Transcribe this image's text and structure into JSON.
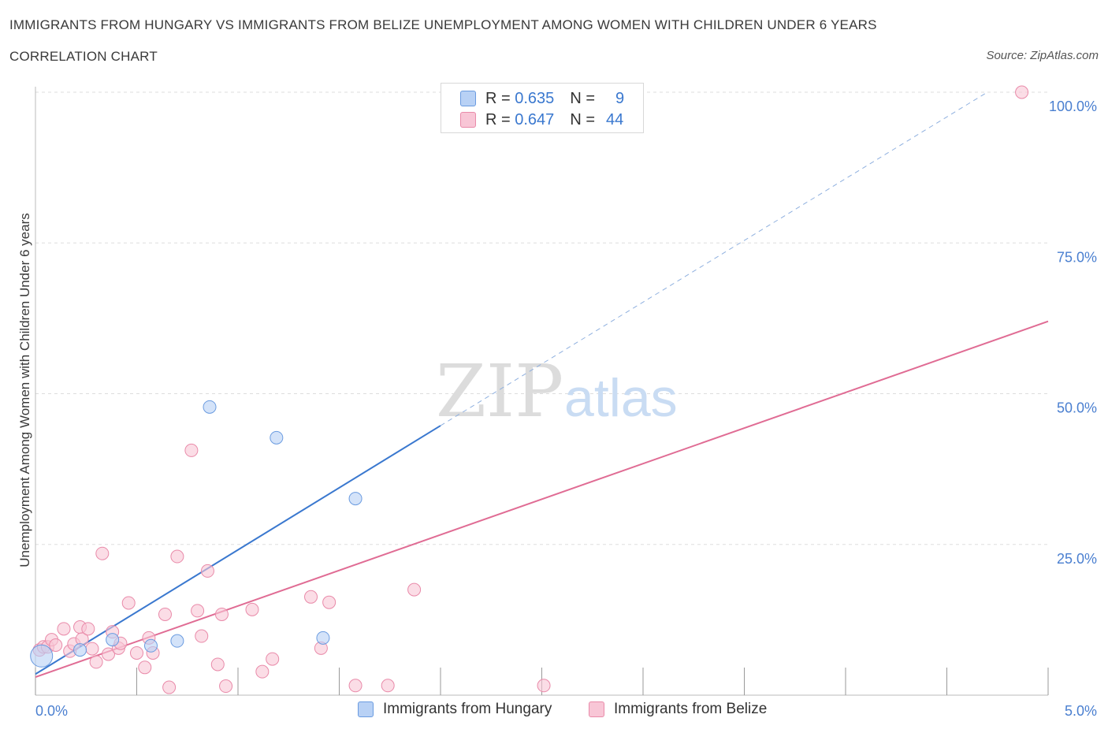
{
  "header": {
    "title": "IMMIGRANTS FROM HUNGARY VS IMMIGRANTS FROM BELIZE UNEMPLOYMENT AMONG WOMEN WITH CHILDREN UNDER 6 YEARS",
    "subtitle": "CORRELATION CHART",
    "source": "Source: ZipAtlas.com"
  },
  "watermark": {
    "zip": "ZIP",
    "atlas": "atlas"
  },
  "legend": {
    "rows": [
      {
        "r_label": "R =",
        "r_value": "0.635",
        "n_label": "N =",
        "n_value": "9"
      },
      {
        "r_label": "R =",
        "r_value": "0.647",
        "n_label": "N =",
        "n_value": "44"
      }
    ]
  },
  "colors": {
    "hungary_fill": "#b8d1f5",
    "hungary_stroke": "#6a9be0",
    "hungary_line": "#3a78cf",
    "belize_fill": "#f8c6d6",
    "belize_stroke": "#e98aa9",
    "belize_line": "#e06c94",
    "grid": "#dddddd",
    "tick_text": "#4a7fd0"
  },
  "chart_data": {
    "type": "scatter",
    "title": "IMMIGRANTS FROM HUNGARY VS IMMIGRANTS FROM BELIZE UNEMPLOYMENT AMONG WOMEN WITH CHILDREN UNDER 6 YEARS",
    "xlabel": "",
    "ylabel": "Unemployment Among Women with Children Under 6 years",
    "xlim": [
      0,
      5
    ],
    "ylim": [
      0,
      100
    ],
    "x_tick_labels": {
      "min": "0.0%",
      "max": "5.0%"
    },
    "y_ticks": [
      {
        "value": 25,
        "label": "25.0%"
      },
      {
        "value": 50,
        "label": "50.0%"
      },
      {
        "value": 75,
        "label": "75.0%"
      },
      {
        "value": 100,
        "label": "100.0%"
      }
    ],
    "series": [
      {
        "name": "Immigrants from Hungary",
        "r": 0.635,
        "n": 9,
        "points": [
          [
            0.03,
            6.5
          ],
          [
            0.22,
            7.5
          ],
          [
            0.38,
            9.2
          ],
          [
            0.57,
            8.2
          ],
          [
            0.7,
            9.0
          ],
          [
            0.86,
            47.8
          ],
          [
            1.19,
            42.7
          ],
          [
            1.42,
            9.5
          ],
          [
            1.58,
            32.6
          ]
        ],
        "trend": {
          "x0": 0.0,
          "y0": 3.5,
          "x1": 2.0,
          "y1": 44.7,
          "dash_to_x": 4.7,
          "dash_to_y": 100.0
        }
      },
      {
        "name": "Immigrants from Belize",
        "r": 0.647,
        "n": 44,
        "points": [
          [
            0.02,
            7.5
          ],
          [
            0.04,
            8.0
          ],
          [
            0.06,
            8.0
          ],
          [
            0.08,
            9.2
          ],
          [
            0.1,
            8.3
          ],
          [
            0.14,
            11.0
          ],
          [
            0.17,
            7.3
          ],
          [
            0.19,
            8.5
          ],
          [
            0.22,
            11.3
          ],
          [
            0.23,
            9.3
          ],
          [
            0.26,
            11.0
          ],
          [
            0.28,
            7.7
          ],
          [
            0.3,
            5.5
          ],
          [
            0.33,
            23.5
          ],
          [
            0.36,
            6.8
          ],
          [
            0.38,
            10.5
          ],
          [
            0.41,
            7.8
          ],
          [
            0.42,
            8.6
          ],
          [
            0.46,
            15.3
          ],
          [
            0.5,
            7.0
          ],
          [
            0.54,
            4.6
          ],
          [
            0.56,
            9.5
          ],
          [
            0.58,
            7.0
          ],
          [
            0.64,
            13.4
          ],
          [
            0.66,
            1.3
          ],
          [
            0.7,
            23.0
          ],
          [
            0.77,
            40.6
          ],
          [
            0.8,
            14.0
          ],
          [
            0.82,
            9.8
          ],
          [
            0.85,
            20.6
          ],
          [
            0.9,
            5.1
          ],
          [
            0.92,
            13.4
          ],
          [
            0.94,
            1.5
          ],
          [
            1.07,
            14.2
          ],
          [
            1.12,
            3.9
          ],
          [
            1.17,
            6.0
          ],
          [
            1.36,
            16.3
          ],
          [
            1.41,
            7.8
          ],
          [
            1.45,
            15.4
          ],
          [
            1.58,
            1.6
          ],
          [
            1.74,
            1.6
          ],
          [
            1.87,
            17.5
          ],
          [
            2.51,
            1.6
          ],
          [
            4.87,
            100.0
          ]
        ],
        "trend": {
          "x0": 0.0,
          "y0": 3.0,
          "x1": 5.0,
          "y1": 62.0
        }
      }
    ]
  }
}
